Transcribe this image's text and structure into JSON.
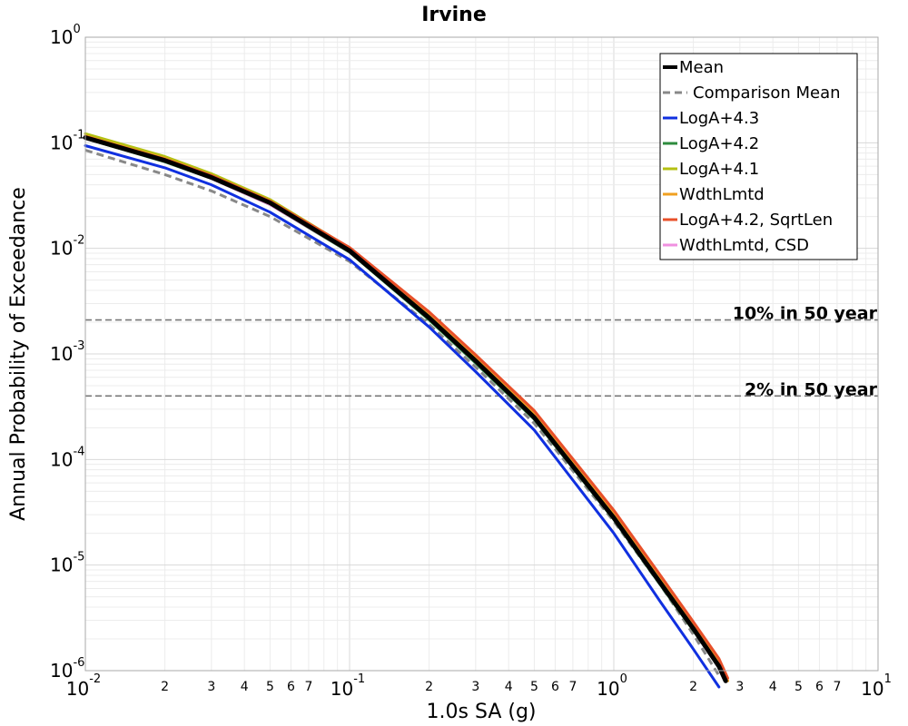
{
  "chart_data": {
    "type": "line",
    "title": "Irvine",
    "xlabel": "1.0s SA (g)",
    "ylabel": "Annual Probability of Exceedance",
    "xscale": "log",
    "yscale": "log",
    "xlim": [
      0.01,
      10
    ],
    "ylim": [
      1e-06,
      1
    ],
    "grid": true,
    "legend_position": "top-right",
    "x_ticks": [
      {
        "base": "10",
        "exp": "-2"
      },
      {
        "base": "10",
        "exp": "-1"
      },
      {
        "base": "10",
        "exp": "0"
      },
      {
        "base": "10",
        "exp": "1"
      }
    ],
    "y_ticks": [
      {
        "base": "10",
        "exp": "-6"
      },
      {
        "base": "10",
        "exp": "-5"
      },
      {
        "base": "10",
        "exp": "-4"
      },
      {
        "base": "10",
        "exp": "-3"
      },
      {
        "base": "10",
        "exp": "-2"
      },
      {
        "base": "10",
        "exp": "-1"
      },
      {
        "base": "10",
        "exp": "0"
      }
    ],
    "minor_tick_labels": [
      "2",
      "3",
      "4",
      "5",
      "6",
      "7"
    ],
    "reference_lines": [
      {
        "label": "10% in 50 year",
        "y": 0.0021
      },
      {
        "label": "2% in 50 year",
        "y": 0.0004
      }
    ],
    "x": [
      0.01,
      0.02,
      0.03,
      0.05,
      0.1,
      0.2,
      0.3,
      0.5,
      1.0,
      1.5,
      2.0,
      2.5,
      2.65,
      2.8
    ],
    "series": [
      {
        "name": "Comparison Mean",
        "color": "#888888",
        "style": "dashed",
        "width": 3,
        "x": [
          0.01,
          0.02,
          0.03,
          0.05,
          0.1,
          0.2,
          0.3,
          0.5,
          1.0,
          1.5,
          2.0,
          2.5
        ],
        "values": [
          0.085,
          0.05,
          0.035,
          0.02,
          0.0075,
          0.0019,
          0.00075,
          0.00022,
          2.6e-05,
          6.5e-06,
          2.2e-06,
          9e-07
        ]
      },
      {
        "name": "LogA+4.3",
        "color": "#1030e0",
        "style": "solid",
        "width": 3,
        "x": [
          0.01,
          0.02,
          0.03,
          0.05,
          0.1,
          0.2,
          0.3,
          0.5,
          1.0,
          1.5,
          2.0,
          2.5
        ],
        "values": [
          0.094,
          0.058,
          0.04,
          0.022,
          0.0078,
          0.0018,
          0.00068,
          0.00019,
          2e-05,
          4.5e-06,
          1.6e-06,
          7e-07
        ]
      },
      {
        "name": "LogA+4.2",
        "color": "#2e8b3e",
        "style": "solid",
        "width": 3,
        "x": [
          0.01,
          0.02,
          0.03,
          0.05,
          0.1,
          0.2,
          0.3,
          0.5,
          1.0,
          1.5,
          2.0,
          2.5,
          2.65
        ],
        "values": [
          0.11,
          0.066,
          0.046,
          0.026,
          0.0092,
          0.0021,
          0.00082,
          0.00024,
          2.7e-05,
          6.5e-06,
          2.4e-06,
          1.1e-06,
          8e-07
        ]
      },
      {
        "name": "LogA+4.1",
        "color": "#b4c012",
        "style": "solid",
        "width": 3,
        "x": [
          0.01,
          0.02,
          0.03,
          0.05,
          0.1,
          0.2,
          0.3,
          0.5,
          1.0,
          1.5,
          2.0,
          2.5,
          2.65
        ],
        "values": [
          0.122,
          0.074,
          0.051,
          0.029,
          0.0101,
          0.0024,
          0.00091,
          0.00026,
          3e-05,
          7.2e-06,
          2.6e-06,
          1.2e-06,
          8.5e-07
        ]
      },
      {
        "name": "WdthLmtd",
        "color": "#f0a020",
        "style": "solid",
        "width": 3,
        "x": [
          0.01,
          0.02,
          0.03,
          0.05,
          0.1,
          0.2,
          0.3,
          0.5,
          1.0,
          1.5,
          2.0,
          2.5,
          2.7
        ],
        "values": [
          0.116,
          0.071,
          0.049,
          0.028,
          0.0099,
          0.0024,
          0.00093,
          0.00027,
          3.1e-05,
          7.4e-06,
          2.7e-06,
          1.2e-06,
          8e-07
        ]
      },
      {
        "name": "LogA+4.2, SqrtLen",
        "color": "#e8502a",
        "style": "solid",
        "width": 3,
        "x": [
          0.01,
          0.02,
          0.03,
          0.05,
          0.1,
          0.2,
          0.3,
          0.5,
          1.0,
          1.5,
          2.0,
          2.5,
          2.7
        ],
        "values": [
          0.115,
          0.07,
          0.049,
          0.028,
          0.0102,
          0.0025,
          0.00098,
          0.00029,
          3.3e-05,
          8e-06,
          2.9e-06,
          1.3e-06,
          8.5e-07
        ]
      },
      {
        "name": "WdthLmtd, CSD",
        "color": "#f090e0",
        "style": "solid",
        "width": 3,
        "x": [
          0.01,
          0.02,
          0.03,
          0.05,
          0.1,
          0.2,
          0.3,
          0.5,
          1.0,
          1.5,
          2.0,
          2.5,
          2.65
        ],
        "values": [
          0.11,
          0.067,
          0.046,
          0.026,
          0.0093,
          0.0022,
          0.00086,
          0.00025,
          2.8e-05,
          6.8e-06,
          2.5e-06,
          1.1e-06,
          8e-07
        ]
      },
      {
        "name": "Mean",
        "color": "#000000",
        "style": "solid",
        "width": 5,
        "x": [
          0.01,
          0.02,
          0.03,
          0.05,
          0.1,
          0.2,
          0.3,
          0.5,
          1.0,
          1.5,
          2.0,
          2.5,
          2.65
        ],
        "values": [
          0.112,
          0.068,
          0.047,
          0.027,
          0.0095,
          0.0022,
          0.00086,
          0.00025,
          2.8e-05,
          6.8e-06,
          2.5e-06,
          1.1e-06,
          8e-07
        ]
      }
    ],
    "legend": [
      {
        "name": "Mean",
        "color": "#000000",
        "style": "solid"
      },
      {
        "name": "Comparison Mean",
        "color": "#888888",
        "style": "dashed"
      },
      {
        "name": "LogA+4.3",
        "color": "#1030e0",
        "style": "solid"
      },
      {
        "name": "LogA+4.2",
        "color": "#2e8b3e",
        "style": "solid"
      },
      {
        "name": "LogA+4.1",
        "color": "#b4c012",
        "style": "solid"
      },
      {
        "name": "WdthLmtd",
        "color": "#f0a020",
        "style": "solid"
      },
      {
        "name": "LogA+4.2, SqrtLen",
        "color": "#e8502a",
        "style": "solid"
      },
      {
        "name": "WdthLmtd, CSD",
        "color": "#f090e0",
        "style": "solid"
      }
    ]
  }
}
